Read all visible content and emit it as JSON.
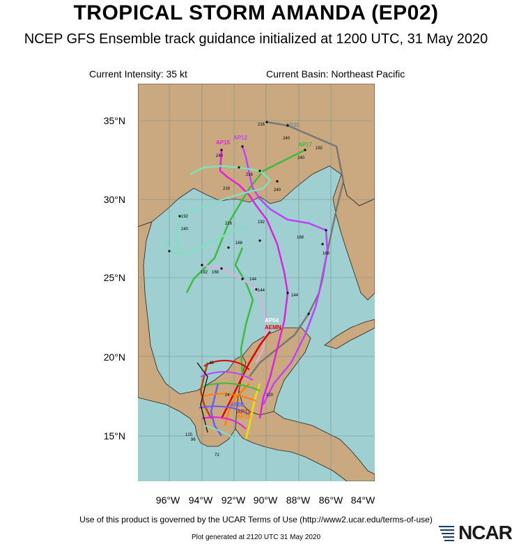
{
  "header": {
    "title": "TROPICAL STORM AMANDA (EP02)",
    "subtitle": "NCEP GFS Ensemble track guidance initialized at 1200 UTC, 31 May 2020",
    "current_intensity": "Current Intensity: 35 kt",
    "current_basin": "Current Basin: Northeast Pacific"
  },
  "map": {
    "lat_labels": [
      "35°N",
      "30°N",
      "25°N",
      "20°N",
      "15°N"
    ],
    "lon_labels": [
      "96°W",
      "94°W",
      "92°W",
      "90°W",
      "88°W",
      "86°W",
      "84°W"
    ],
    "colors": {
      "ocean": "#9fcfd0",
      "land": "#cba980",
      "border": "#222222",
      "grid": "#6d8f90"
    },
    "track_labels": [
      {
        "text": "AP15",
        "color": "#e020e0"
      },
      {
        "text": "AP12",
        "color": "#c040ff"
      },
      {
        "text": "AP17",
        "color": "#30c030"
      },
      {
        "text": "AP20",
        "color": "#888888"
      },
      {
        "text": "AP04",
        "color": "#ffffff"
      },
      {
        "text": "AEMN",
        "color": "#e00000"
      },
      {
        "text": "AP08",
        "color": "#6060ff"
      },
      {
        "text": "AP11",
        "color": "#c04000"
      },
      {
        "text": "AP19",
        "color": "#ff8000"
      }
    ],
    "hour_labels": [
      "216",
      "240",
      "192",
      "240",
      "240",
      "216",
      "216",
      "240",
      "192",
      "240",
      "216",
      "192",
      "168",
      "168",
      "168",
      "192",
      "168",
      "144",
      "144",
      "144",
      "120",
      "120",
      "96",
      "72",
      "48",
      "24"
    ]
  },
  "footer": {
    "terms": "Use of this product is governed by the UCAR Terms of Use (http://www2.ucar.edu/terms-of-use)",
    "generated": "Plot generated at 2120 UTC 31 May 2020",
    "logo_text": "NCAR"
  }
}
